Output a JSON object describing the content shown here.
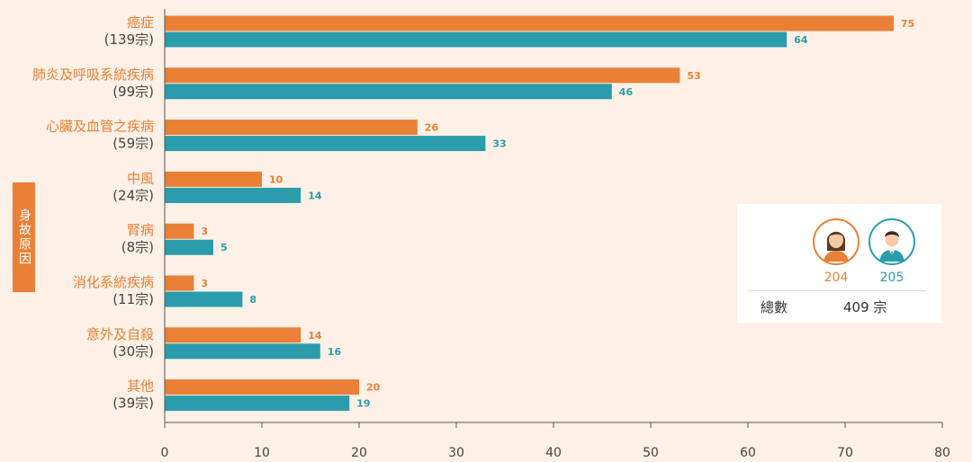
{
  "axis_title": "身故原因",
  "chart_data": {
    "type": "bar",
    "orientation": "horizontal",
    "categories": [
      {
        "name": "癌症",
        "count": "(139宗)"
      },
      {
        "name": "肺炎及呼吸系統疾病",
        "count": "(99宗)"
      },
      {
        "name": "心臟及血管之疾病",
        "count": "(59宗)"
      },
      {
        "name": "中風",
        "count": "(24宗)"
      },
      {
        "name": "腎病",
        "count": "(8宗)"
      },
      {
        "name": "消化系統疾病",
        "count": "(11宗)"
      },
      {
        "name": "意外及自殺",
        "count": "(30宗)"
      },
      {
        "name": "其他",
        "count": "(39宗)"
      }
    ],
    "series": [
      {
        "values": [
          75,
          53,
          26,
          10,
          3,
          3,
          14,
          20
        ],
        "color": "#e98036"
      },
      {
        "values": [
          64,
          46,
          33,
          14,
          5,
          8,
          16,
          19
        ],
        "color": "#2a9cab"
      }
    ],
    "xlim": [
      0,
      80
    ],
    "xticks": [
      0,
      10,
      20,
      30,
      40,
      50,
      60,
      70,
      80
    ],
    "grid": false
  },
  "legend": {
    "female_icon": "female-avatar-icon",
    "male_icon": "male-avatar-icon",
    "female_count": "204",
    "male_count": "205",
    "total_label": "總數",
    "total_value": "409 宗"
  },
  "colors": {
    "background": "#fdf0e6",
    "female": "#e98036",
    "male": "#2a9cab",
    "category_text": "#e98036",
    "count_text": "#444444"
  }
}
